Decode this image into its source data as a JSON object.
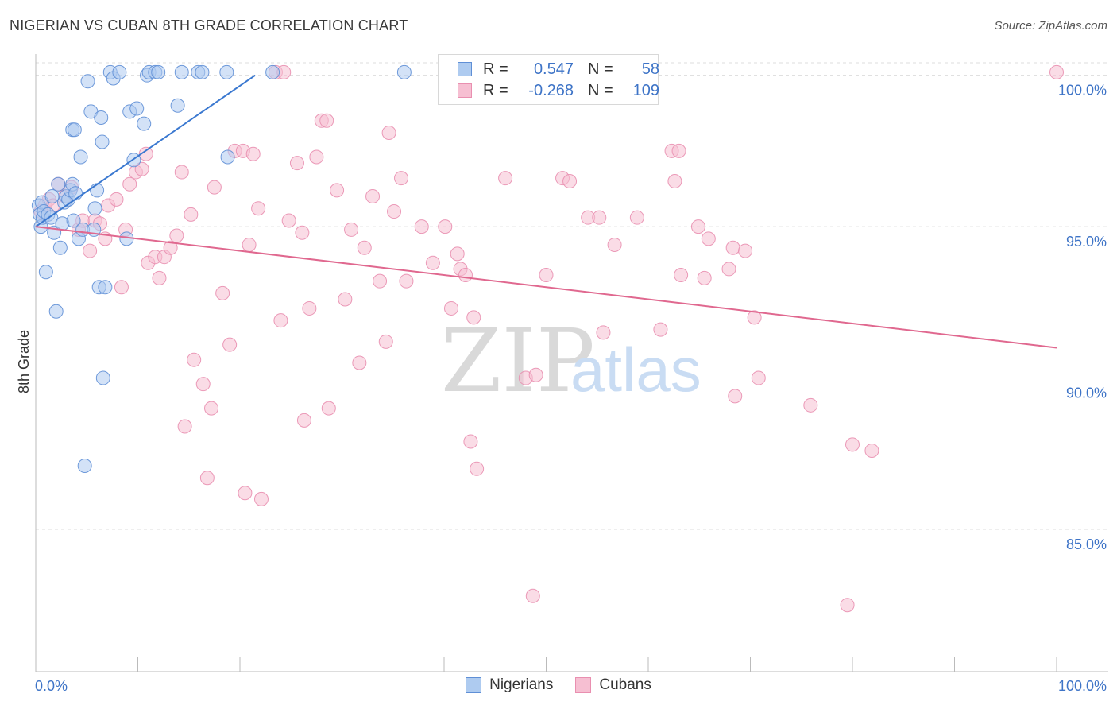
{
  "header": {
    "title": "NIGERIAN VS CUBAN 8TH GRADE CORRELATION CHART",
    "source": "Source: ZipAtlas.com"
  },
  "legend": {
    "nigerians": {
      "r_label": "R =",
      "r_value": "0.547",
      "n_label": "N =",
      "n_value": "58"
    },
    "cubans": {
      "r_label": "R =",
      "r_value": "-0.268",
      "n_label": "N =",
      "n_value": "109"
    }
  },
  "bottom_legend": {
    "nigerians": "Nigerians",
    "cubans": "Cubans"
  },
  "watermark": {
    "zip": "ZIP",
    "atlas": "atlas"
  },
  "colors": {
    "nigerian_fill": "#aecbf0",
    "nigerian_stroke": "#5f8fd6",
    "nigerian_line": "#3a78d0",
    "cuban_fill": "#f6bfd2",
    "cuban_stroke": "#e98fb0",
    "cuban_line": "#e0688f",
    "axis_label": "#3e74c7"
  },
  "chart_data": {
    "type": "scatter",
    "title": "NIGERIAN VS CUBAN 8TH GRADE CORRELATION CHART",
    "xlabel": "",
    "ylabel": "8th Grade",
    "xlim": [
      0,
      100
    ],
    "ylim": [
      80.3,
      100.7
    ],
    "x_tick_labels": [
      "0.0%",
      "100.0%"
    ],
    "y_ticks": [
      85,
      90,
      95,
      100
    ],
    "y_tick_labels": [
      "85.0%",
      "90.0%",
      "95.0%",
      "100.0%"
    ],
    "grid": true,
    "series": [
      {
        "name": "Nigerians",
        "r": 0.547,
        "n": 58,
        "trend": {
          "x": [
            0,
            21.5
          ],
          "y": [
            95.0,
            100.0
          ]
        },
        "points": [
          [
            0.3,
            95.7
          ],
          [
            0.4,
            95.4
          ],
          [
            0.5,
            95.0
          ],
          [
            0.6,
            95.8
          ],
          [
            0.7,
            95.3
          ],
          [
            0.8,
            95.5
          ],
          [
            1.0,
            93.5
          ],
          [
            1.2,
            95.4
          ],
          [
            1.5,
            95.3
          ],
          [
            1.6,
            96.0
          ],
          [
            1.8,
            94.8
          ],
          [
            2.0,
            92.2
          ],
          [
            2.2,
            96.4
          ],
          [
            2.4,
            94.3
          ],
          [
            2.6,
            95.1
          ],
          [
            2.8,
            95.8
          ],
          [
            3.0,
            96.0
          ],
          [
            3.2,
            95.9
          ],
          [
            3.4,
            96.2
          ],
          [
            3.6,
            96.4
          ],
          [
            3.7,
            95.2
          ],
          [
            3.9,
            96.1
          ],
          [
            3.6,
            98.2
          ],
          [
            3.8,
            98.2
          ],
          [
            4.2,
            94.6
          ],
          [
            4.4,
            97.3
          ],
          [
            4.6,
            94.9
          ],
          [
            4.8,
            87.1
          ],
          [
            5.1,
            99.8
          ],
          [
            5.4,
            98.8
          ],
          [
            5.7,
            94.9
          ],
          [
            5.8,
            95.6
          ],
          [
            6.0,
            96.2
          ],
          [
            6.2,
            93.0
          ],
          [
            6.4,
            98.6
          ],
          [
            6.5,
            97.8
          ],
          [
            6.6,
            90.0
          ],
          [
            6.8,
            93.0
          ],
          [
            7.3,
            100.1
          ],
          [
            7.6,
            99.9
          ],
          [
            8.2,
            100.1
          ],
          [
            8.9,
            94.6
          ],
          [
            9.2,
            98.8
          ],
          [
            9.6,
            97.2
          ],
          [
            9.9,
            98.9
          ],
          [
            10.6,
            98.4
          ],
          [
            10.9,
            100.0
          ],
          [
            11.1,
            100.1
          ],
          [
            11.7,
            100.1
          ],
          [
            12.0,
            100.1
          ],
          [
            13.9,
            99.0
          ],
          [
            14.3,
            100.1
          ],
          [
            15.9,
            100.1
          ],
          [
            16.3,
            100.1
          ],
          [
            18.7,
            100.1
          ],
          [
            18.8,
            97.3
          ],
          [
            23.2,
            100.1
          ],
          [
            36.1,
            100.1
          ]
        ]
      },
      {
        "name": "Cubans",
        "r": -0.268,
        "n": 109,
        "trend": {
          "x": [
            0,
            100
          ],
          "y": [
            95.0,
            91.0
          ]
        },
        "points": [
          [
            0.5,
            95.5
          ],
          [
            0.9,
            95.7
          ],
          [
            1.3,
            95.9
          ],
          [
            1.7,
            95.7
          ],
          [
            2.2,
            96.4
          ],
          [
            2.9,
            96.0
          ],
          [
            3.5,
            96.3
          ],
          [
            4.2,
            94.9
          ],
          [
            4.6,
            95.2
          ],
          [
            5.3,
            94.2
          ],
          [
            5.8,
            95.2
          ],
          [
            6.3,
            95.1
          ],
          [
            6.8,
            94.6
          ],
          [
            7.1,
            95.7
          ],
          [
            7.9,
            95.9
          ],
          [
            8.4,
            93.0
          ],
          [
            8.8,
            94.9
          ],
          [
            9.2,
            96.4
          ],
          [
            9.8,
            96.8
          ],
          [
            10.4,
            96.9
          ],
          [
            10.8,
            97.4
          ],
          [
            11.0,
            93.8
          ],
          [
            11.7,
            94.0
          ],
          [
            12.1,
            93.3
          ],
          [
            12.6,
            94.0
          ],
          [
            13.2,
            94.3
          ],
          [
            13.8,
            94.7
          ],
          [
            14.3,
            96.8
          ],
          [
            14.6,
            88.4
          ],
          [
            15.2,
            95.4
          ],
          [
            15.5,
            90.6
          ],
          [
            16.4,
            89.8
          ],
          [
            16.8,
            86.7
          ],
          [
            17.2,
            89.0
          ],
          [
            17.5,
            96.3
          ],
          [
            18.3,
            92.8
          ],
          [
            19.0,
            91.1
          ],
          [
            19.5,
            97.5
          ],
          [
            20.3,
            97.5
          ],
          [
            20.5,
            86.2
          ],
          [
            20.9,
            94.4
          ],
          [
            21.3,
            97.4
          ],
          [
            21.8,
            95.6
          ],
          [
            22.1,
            86.0
          ],
          [
            23.5,
            100.1
          ],
          [
            24.0,
            91.9
          ],
          [
            24.3,
            100.1
          ],
          [
            24.8,
            95.2
          ],
          [
            25.6,
            97.1
          ],
          [
            26.1,
            94.8
          ],
          [
            26.3,
            88.6
          ],
          [
            26.8,
            92.3
          ],
          [
            27.5,
            97.3
          ],
          [
            28.0,
            98.5
          ],
          [
            28.5,
            98.5
          ],
          [
            28.7,
            89.0
          ],
          [
            29.5,
            96.2
          ],
          [
            30.3,
            92.6
          ],
          [
            30.9,
            94.9
          ],
          [
            31.7,
            90.5
          ],
          [
            32.2,
            94.3
          ],
          [
            33.0,
            96.0
          ],
          [
            33.7,
            93.2
          ],
          [
            34.3,
            91.2
          ],
          [
            34.6,
            98.1
          ],
          [
            35.1,
            95.5
          ],
          [
            35.8,
            96.6
          ],
          [
            36.3,
            93.2
          ],
          [
            37.8,
            95.0
          ],
          [
            38.9,
            93.8
          ],
          [
            40.1,
            95.0
          ],
          [
            40.7,
            92.3
          ],
          [
            41.3,
            94.1
          ],
          [
            41.6,
            93.6
          ],
          [
            42.1,
            93.4
          ],
          [
            42.6,
            87.9
          ],
          [
            42.9,
            92.0
          ],
          [
            43.2,
            87.0
          ],
          [
            46.0,
            96.6
          ],
          [
            48.0,
            90.0
          ],
          [
            48.7,
            82.8
          ],
          [
            49.0,
            90.1
          ],
          [
            50.0,
            93.4
          ],
          [
            51.6,
            96.6
          ],
          [
            52.3,
            96.5
          ],
          [
            54.1,
            95.3
          ],
          [
            55.2,
            95.3
          ],
          [
            55.6,
            91.5
          ],
          [
            56.7,
            94.4
          ],
          [
            58.9,
            95.3
          ],
          [
            61.2,
            91.6
          ],
          [
            62.3,
            97.5
          ],
          [
            62.6,
            96.5
          ],
          [
            63.2,
            93.4
          ],
          [
            64.9,
            95.0
          ],
          [
            65.5,
            93.3
          ],
          [
            65.9,
            94.6
          ],
          [
            67.9,
            93.6
          ],
          [
            68.3,
            94.3
          ],
          [
            68.5,
            89.4
          ],
          [
            69.5,
            94.2
          ],
          [
            70.4,
            92.0
          ],
          [
            70.8,
            90.0
          ],
          [
            75.9,
            89.1
          ],
          [
            79.5,
            82.5
          ],
          [
            80.0,
            87.8
          ],
          [
            81.9,
            87.6
          ],
          [
            100.0,
            100.1
          ],
          [
            63.0,
            97.5
          ]
        ]
      }
    ]
  }
}
